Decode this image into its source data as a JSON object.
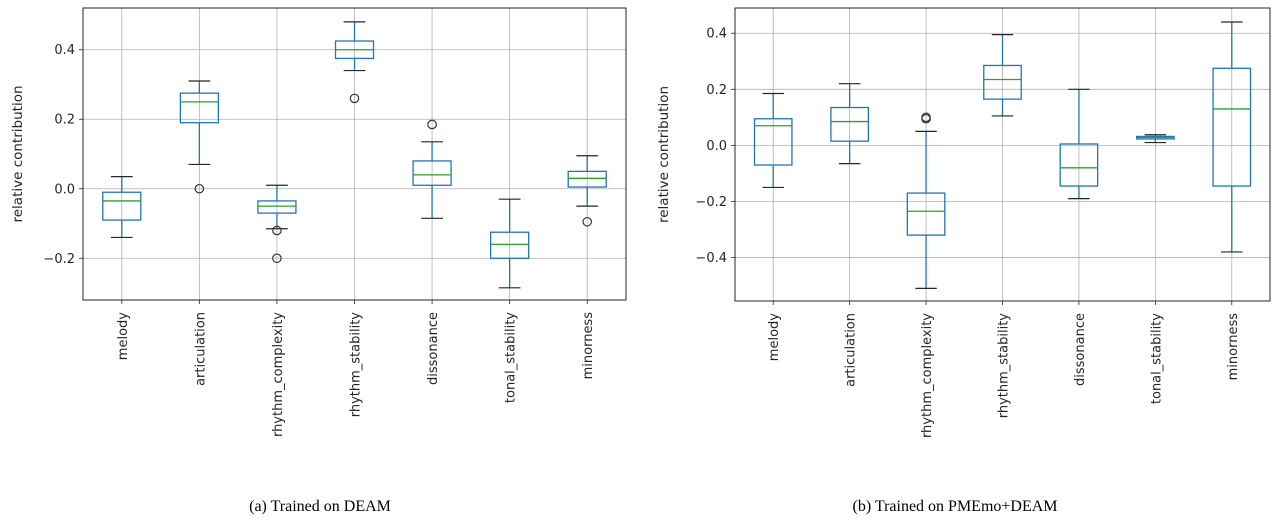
{
  "chart_data": [
    {
      "type": "boxplot",
      "caption": "(a) Trained on DEAM",
      "ylabel": "relative contribution",
      "ylim": [
        -0.32,
        0.52
      ],
      "yticks": [
        -0.2,
        0.0,
        0.2,
        0.4
      ],
      "ytick_labels": [
        "−0.2",
        "0.0",
        "0.2",
        "0.4"
      ],
      "grid": true,
      "colors": {
        "box": "#1f77b4",
        "median": "#2ca02c",
        "grid": "#b0b0b0",
        "outlier": "#333333"
      },
      "categories": [
        "melody",
        "articulation",
        "rhythm_complexity",
        "rhythm_stability",
        "dissonance",
        "tonal_stability",
        "minorness"
      ],
      "boxes": [
        {
          "whislo": -0.14,
          "q1": -0.09,
          "med": -0.035,
          "q3": -0.01,
          "whishi": 0.035,
          "fliers": []
        },
        {
          "whislo": 0.07,
          "q1": 0.19,
          "med": 0.25,
          "q3": 0.275,
          "whishi": 0.31,
          "fliers": [
            0.0
          ]
        },
        {
          "whislo": -0.115,
          "q1": -0.07,
          "med": -0.05,
          "q3": -0.035,
          "whishi": 0.01,
          "fliers": [
            -0.12,
            -0.2
          ]
        },
        {
          "whislo": 0.34,
          "q1": 0.375,
          "med": 0.4,
          "q3": 0.425,
          "whishi": 0.48,
          "fliers": [
            0.26
          ]
        },
        {
          "whislo": -0.085,
          "q1": 0.01,
          "med": 0.04,
          "q3": 0.08,
          "whishi": 0.135,
          "fliers": [
            0.185
          ]
        },
        {
          "whislo": -0.285,
          "q1": -0.2,
          "med": -0.16,
          "q3": -0.125,
          "whishi": -0.03,
          "fliers": []
        },
        {
          "whislo": -0.05,
          "q1": 0.005,
          "med": 0.03,
          "q3": 0.05,
          "whishi": 0.095,
          "fliers": [
            -0.095
          ]
        }
      ]
    },
    {
      "type": "boxplot",
      "caption": "(b) Trained on PMEmo+DEAM",
      "ylabel": "relative contribution",
      "ylim": [
        -0.555,
        0.49
      ],
      "yticks": [
        -0.4,
        -0.2,
        0.0,
        0.2,
        0.4
      ],
      "ytick_labels": [
        "−0.4",
        "−0.2",
        "0.0",
        "0.2",
        "0.4"
      ],
      "grid": true,
      "colors": {
        "box": "#1f77b4",
        "median": "#2ca02c",
        "grid": "#b0b0b0",
        "outlier": "#333333"
      },
      "categories": [
        "melody",
        "articulation",
        "rhythm_complexity",
        "rhythm_stability",
        "dissonance",
        "tonal_stability",
        "minorness"
      ],
      "boxes": [
        {
          "whislo": -0.15,
          "q1": -0.07,
          "med": 0.07,
          "q3": 0.095,
          "whishi": 0.185,
          "fliers": []
        },
        {
          "whislo": -0.065,
          "q1": 0.015,
          "med": 0.085,
          "q3": 0.135,
          "whishi": 0.22,
          "fliers": []
        },
        {
          "whislo": -0.51,
          "q1": -0.32,
          "med": -0.235,
          "q3": -0.17,
          "whishi": 0.05,
          "fliers": [
            0.095,
            0.1
          ]
        },
        {
          "whislo": 0.105,
          "q1": 0.165,
          "med": 0.235,
          "q3": 0.285,
          "whishi": 0.395,
          "fliers": []
        },
        {
          "whislo": -0.19,
          "q1": -0.145,
          "med": -0.08,
          "q3": 0.005,
          "whishi": 0.2,
          "fliers": []
        },
        {
          "whislo": 0.01,
          "q1": 0.023,
          "med": 0.028,
          "q3": 0.032,
          "whishi": 0.038,
          "fliers": []
        },
        {
          "whislo": -0.38,
          "q1": -0.145,
          "med": 0.13,
          "q3": 0.275,
          "whishi": 0.44,
          "fliers": []
        }
      ]
    }
  ]
}
